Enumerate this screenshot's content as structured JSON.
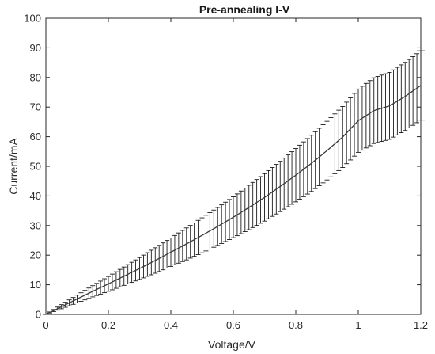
{
  "chart_data": {
    "type": "line",
    "title": "Pre-annealing I-V",
    "xlabel": "Voltage/V",
    "ylabel": "Current/mA",
    "xlim": [
      0,
      1.2
    ],
    "ylim": [
      0,
      100
    ],
    "x_ticks": [
      "0",
      "0.2",
      "0.4",
      "0.6",
      "0.8",
      "1",
      "1.2"
    ],
    "y_ticks": [
      "0",
      "10",
      "20",
      "30",
      "40",
      "50",
      "60",
      "70",
      "80",
      "90",
      "100"
    ],
    "grid": false,
    "legend": "none",
    "series": [
      {
        "x": [
          0,
          0.05,
          0.1,
          0.15,
          0.2,
          0.25,
          0.3,
          0.35,
          0.4,
          0.45,
          0.5,
          0.55,
          0.6,
          0.65,
          0.7,
          0.75,
          0.8,
          0.85,
          0.9,
          0.95,
          1.0,
          1.05,
          1.1,
          1.15,
          1.2
        ],
        "y": [
          0,
          2.6,
          5.2,
          7.8,
          10.3,
          12.9,
          15.5,
          18.2,
          21.0,
          23.8,
          26.7,
          29.7,
          32.8,
          36.1,
          39.5,
          43.2,
          47.0,
          51.0,
          55.3,
          59.9,
          65.4,
          68.8,
          70.4,
          73.6,
          77.3
        ],
        "yerr": [
          0,
          0.7,
          1.3,
          1.9,
          2.5,
          3.1,
          3.7,
          4.3,
          4.8,
          5.4,
          5.9,
          6.4,
          6.9,
          7.5,
          8.0,
          8.5,
          9.0,
          9.5,
          9.9,
          10.3,
          10.7,
          11.1,
          11.3,
          11.5,
          11.7
        ]
      }
    ]
  }
}
